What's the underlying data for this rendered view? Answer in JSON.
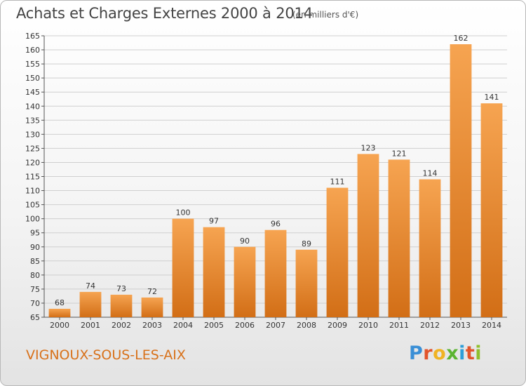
{
  "header": {
    "title": "Achats et Charges Externes 2000 à 2014",
    "subtitle": "(en milliers d'€)"
  },
  "footer": {
    "city": "VIGNOUX-SOUS-LES-AIX",
    "logo": "Proxiti"
  },
  "colors": {
    "bar_light": "#f6a451",
    "bar_dark": "#d26e16",
    "city_text": "#d8711a",
    "grid": "#cfcfcf"
  },
  "chart_data": {
    "type": "bar",
    "title": "Achats et Charges Externes 2000 à 2014",
    "subtitle": "(en milliers d'€)",
    "xlabel": "",
    "ylabel": "",
    "categories": [
      "2000",
      "2001",
      "2002",
      "2003",
      "2004",
      "2005",
      "2006",
      "2007",
      "2008",
      "2009",
      "2010",
      "2011",
      "2012",
      "2013",
      "2014"
    ],
    "values": [
      68,
      74,
      73,
      72,
      100,
      97,
      90,
      96,
      89,
      111,
      123,
      121,
      114,
      162,
      141
    ],
    "data_labels": [
      "68",
      "74",
      "73",
      "72",
      "100",
      "97",
      "90",
      "96",
      "89",
      "111",
      "123",
      "121",
      "114",
      "162",
      "141"
    ],
    "ylim": [
      65,
      165
    ],
    "yticks": [
      65,
      70,
      75,
      80,
      85,
      90,
      95,
      100,
      105,
      110,
      115,
      120,
      125,
      130,
      135,
      140,
      145,
      150,
      155,
      160,
      165
    ],
    "ytick_labels": [
      "65",
      "70",
      "75",
      "80",
      "85",
      "90",
      "95",
      "100",
      "105",
      "110",
      "115",
      "120",
      "125",
      "130",
      "135",
      "140",
      "145",
      "150",
      "155",
      "160",
      "165"
    ],
    "grid": true,
    "legend": "none"
  }
}
